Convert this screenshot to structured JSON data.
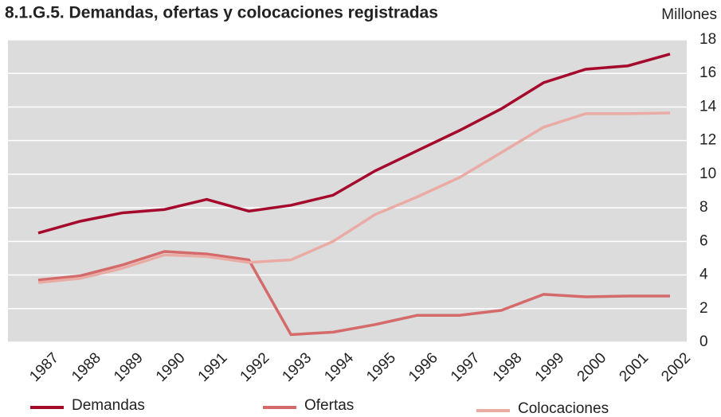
{
  "chart_data": {
    "type": "line",
    "title": "8.1.G.5. Demandas, ofertas y colocaciones registradas",
    "y_axis_label": "Millones",
    "categories": [
      "1987",
      "1988",
      "1989",
      "1990",
      "1991",
      "1992",
      "1993",
      "1994",
      "1995",
      "1996",
      "1997",
      "1998",
      "1999",
      "2000",
      "2001",
      "2002"
    ],
    "series": [
      {
        "name": "Demandas",
        "color": "#a50a2d",
        "values": [
          6.5,
          7.2,
          7.7,
          7.9,
          8.5,
          7.8,
          8.15,
          8.75,
          10.2,
          11.4,
          12.6,
          13.9,
          15.45,
          16.25,
          16.45,
          17.15
        ]
      },
      {
        "name": "Ofertas",
        "color": "#d46a6a",
        "values": [
          3.7,
          3.95,
          4.6,
          5.4,
          5.25,
          4.9,
          0.45,
          0.6,
          1.05,
          1.6,
          1.6,
          1.9,
          2.85,
          2.7,
          2.75,
          2.75
        ]
      },
      {
        "name": "Colocaciones",
        "color": "#eaaba5",
        "values": [
          3.55,
          3.8,
          4.4,
          5.2,
          5.1,
          4.75,
          4.9,
          6.0,
          7.6,
          8.65,
          9.8,
          11.3,
          12.8,
          13.6,
          13.6,
          13.65
        ]
      }
    ],
    "ylim": [
      0,
      18
    ],
    "yticks": [
      0,
      2,
      4,
      6,
      8,
      10,
      12,
      14,
      16,
      18
    ],
    "grid": true,
    "legend": "bottom"
  }
}
